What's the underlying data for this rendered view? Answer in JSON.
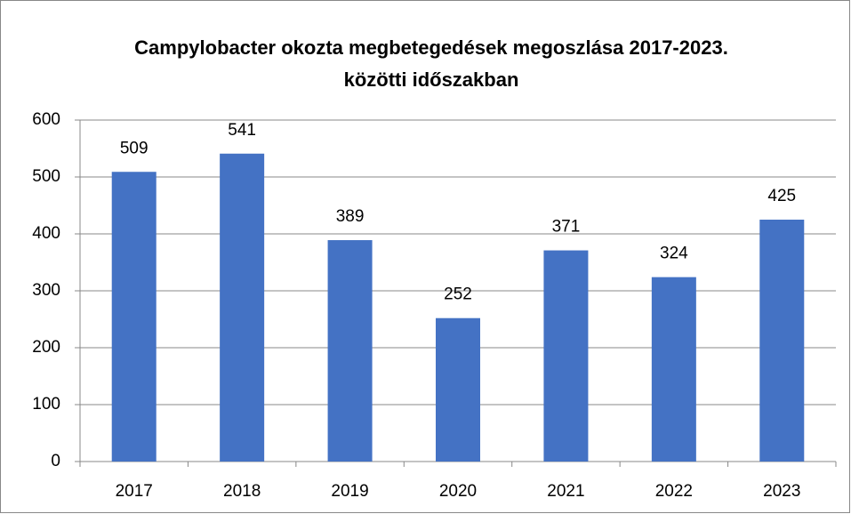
{
  "chart_data": {
    "type": "bar",
    "title": "Campylobacter okozta megbetegedések megoszlása 2017-2023. közötti időszakban",
    "categories": [
      "2017",
      "2018",
      "2019",
      "2020",
      "2021",
      "2022",
      "2023"
    ],
    "values": [
      509,
      541,
      389,
      252,
      371,
      324,
      425
    ],
    "color": "#4472c4",
    "ylim": [
      0,
      600
    ],
    "yticks": [
      0,
      100,
      200,
      300,
      400,
      500,
      600
    ],
    "grid": true
  }
}
